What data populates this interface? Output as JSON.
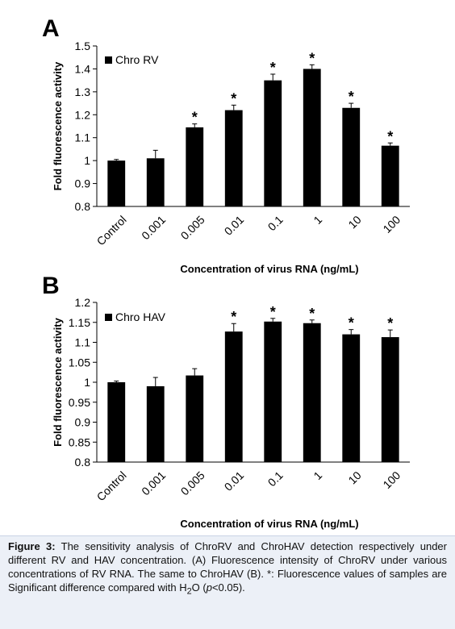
{
  "chart_data": [
    {
      "panel_label": "A",
      "type": "bar",
      "categories": [
        "Control",
        "0.001",
        "0.005",
        "0.01",
        "0.1",
        "1",
        "10",
        "100"
      ],
      "series": [
        {
          "name": "Chro RV",
          "values": [
            1.0,
            1.01,
            1.145,
            1.22,
            1.35,
            1.4,
            1.23,
            1.065
          ],
          "errors": [
            0.005,
            0.035,
            0.015,
            0.022,
            0.027,
            0.018,
            0.02,
            0.012
          ],
          "significant": [
            false,
            false,
            true,
            true,
            true,
            true,
            true,
            true
          ]
        }
      ],
      "ylabel": "Fold fluorescence activity",
      "xlabel": "Concentration of virus RNA (ng/mL)",
      "ylim": [
        0.8,
        1.5
      ],
      "yticks": [
        "0.8",
        "0.9",
        "1",
        "1.1",
        "1.2",
        "1.3",
        "1.4",
        "1.5"
      ],
      "legend_position": "top-left",
      "significance_marker": "*",
      "bar_color": "#000000"
    },
    {
      "panel_label": "B",
      "type": "bar",
      "categories": [
        "Control",
        "0.001",
        "0.005",
        "0.01",
        "0.1",
        "1",
        "10",
        "100"
      ],
      "series": [
        {
          "name": "Chro HAV",
          "values": [
            1.0,
            0.99,
            1.017,
            1.127,
            1.152,
            1.148,
            1.12,
            1.113
          ],
          "errors": [
            0.003,
            0.022,
            0.017,
            0.02,
            0.008,
            0.008,
            0.012,
            0.018
          ],
          "significant": [
            false,
            false,
            false,
            true,
            true,
            true,
            true,
            true
          ]
        }
      ],
      "ylabel": "Fold fluorescence activity",
      "xlabel": "Concentration of virus RNA (ng/mL)",
      "ylim": [
        0.8,
        1.2
      ],
      "yticks": [
        "0.8",
        "0.85",
        "0.9",
        "0.95",
        "1",
        "1.05",
        "1.1",
        "1.15",
        "1.2"
      ],
      "legend_position": "top-left",
      "significance_marker": "*",
      "bar_color": "#000000"
    }
  ],
  "caption": {
    "label": "Figure 3:",
    "text_part1": " The sensitivity analysis of ChroRV and ChroHAV detection respectively under different RV and HAV concentration. (A) Fluorescence intensity of ChroRV under various concentrations of RV RNA. The same to ChroHAV (B). *: Fluorescence values of samples are Significant difference compared with H",
    "subscript": "2",
    "text_part2": "O (",
    "p_symbol": "p",
    "text_part3": "<0.05)."
  },
  "colors": {
    "caption_bg": "#ecf0f7",
    "bars": "#000000",
    "axis": "#000000"
  }
}
